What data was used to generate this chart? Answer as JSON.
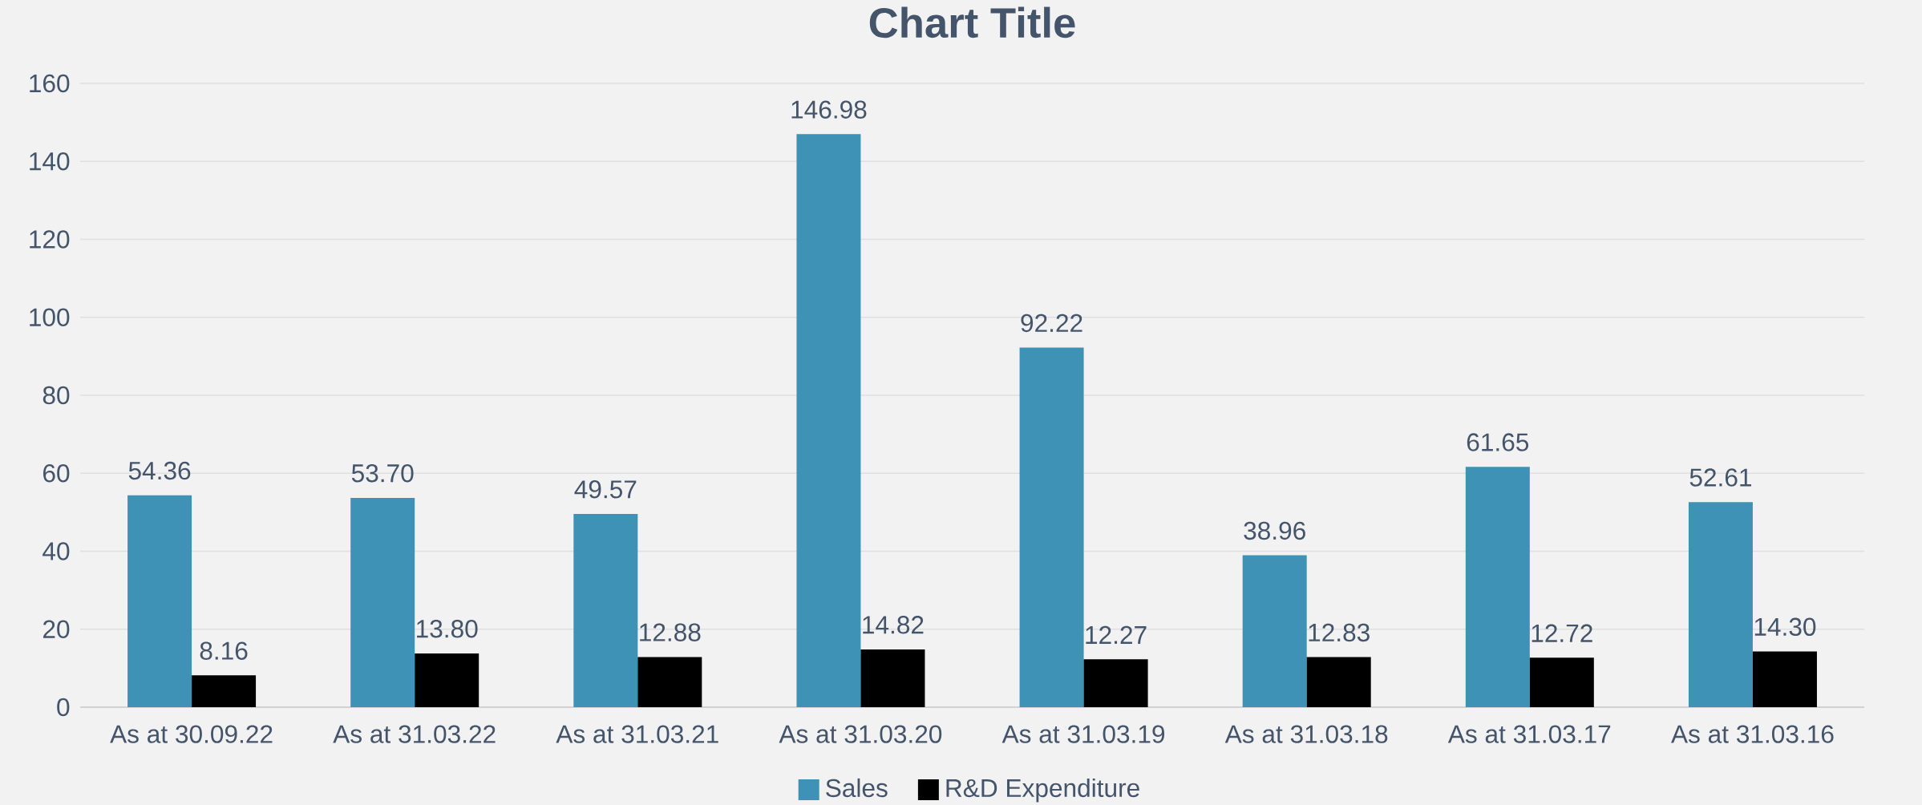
{
  "chart_data": {
    "type": "bar",
    "title": "Chart Title",
    "categories": [
      "As at 30.09.22",
      "As at 31.03.22",
      "As at 31.03.21",
      "As at 31.03.20",
      "As at 31.03.19",
      "As at 31.03.18",
      "As at 31.03.17",
      "As at 31.03.16"
    ],
    "series": [
      {
        "name": "Sales",
        "color": "#3e92b6",
        "values": [
          54.36,
          53.7,
          49.57,
          146.98,
          92.22,
          38.96,
          61.65,
          52.61
        ],
        "value_labels": [
          "54.36",
          "53.70",
          "49.57",
          "146.98",
          "92.22",
          "38.96",
          "61.65",
          "52.61"
        ]
      },
      {
        "name": "R&D Expenditure",
        "color": "#000000",
        "values": [
          8.16,
          13.8,
          12.88,
          14.82,
          12.27,
          12.83,
          12.72,
          14.3
        ],
        "value_labels": [
          "8.16",
          "13.80",
          "12.88",
          "14.82",
          "12.27",
          "12.83",
          "12.72",
          "14.30"
        ]
      }
    ],
    "ylim": [
      0,
      160
    ],
    "yticks": [
      0,
      20,
      40,
      60,
      80,
      100,
      120,
      140,
      160
    ],
    "grid": "y",
    "legend": "bottom"
  }
}
